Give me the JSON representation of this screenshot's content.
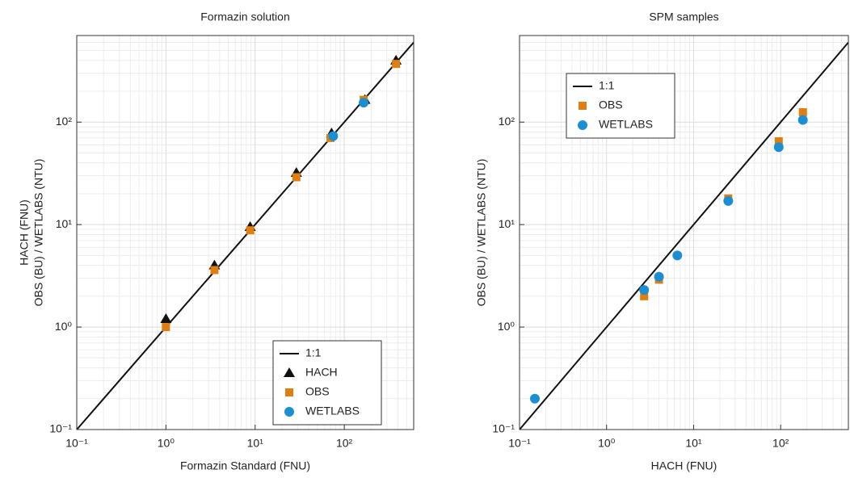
{
  "chart_data": [
    {
      "type": "scatter",
      "title": "Formazin solution",
      "xlabel": "Formazin Standard (FNU)",
      "ylabel": [
        "HACH (FNU)",
        "OBS (BU) / WETLABS (NTU)"
      ],
      "log_x": true,
      "log_y": true,
      "grid": true,
      "minor_grid": true,
      "legend": "lower right",
      "xlim": [
        0.1,
        600
      ],
      "ylim": [
        0.1,
        700
      ],
      "xticks": [
        {
          "value": 0.1,
          "label": "10⁻¹"
        },
        {
          "value": 1,
          "label": "10⁰"
        },
        {
          "value": 10,
          "label": "10¹"
        },
        {
          "value": 100,
          "label": "10²"
        }
      ],
      "yticks": [
        {
          "value": 0.1,
          "label": "10⁻¹"
        },
        {
          "value": 1,
          "label": "10⁰"
        },
        {
          "value": 10,
          "label": "10¹"
        },
        {
          "value": 100,
          "label": "10²"
        }
      ],
      "series": [
        {
          "name": "1:1",
          "marker": "line",
          "color": "#111111",
          "x": [
            0.1,
            600
          ],
          "values": [
            0.1,
            600
          ]
        },
        {
          "name": "HACH",
          "marker": "triangle",
          "color": "#111111",
          "x": [
            1,
            3.5,
            8.8,
            29,
            72,
            170,
            380
          ],
          "values": [
            1.2,
            4,
            9.5,
            32,
            78,
            165,
            400
          ]
        },
        {
          "name": "OBS",
          "marker": "square",
          "color": "#e07f10",
          "x": [
            1,
            3.5,
            8.8,
            29,
            70,
            165,
            380
          ],
          "values": [
            1.0,
            3.6,
            8.8,
            29,
            70,
            165,
            370
          ]
        },
        {
          "name": "WETLABS",
          "marker": "circle",
          "color": "#1b8fd2",
          "x": [
            75,
            165
          ],
          "values": [
            73,
            155
          ]
        }
      ]
    },
    {
      "type": "scatter",
      "title": "SPM samples",
      "xlabel": "HACH (FNU)",
      "ylabel": [
        "OBS (BU) / WETLABS (NTU)"
      ],
      "log_x": true,
      "log_y": true,
      "grid": true,
      "minor_grid": true,
      "legend": "upper left",
      "xlim": [
        0.1,
        600
      ],
      "ylim": [
        0.1,
        700
      ],
      "xticks": [
        {
          "value": 0.1,
          "label": "10⁻¹"
        },
        {
          "value": 1,
          "label": "10⁰"
        },
        {
          "value": 10,
          "label": "10¹"
        },
        {
          "value": 100,
          "label": "10²"
        }
      ],
      "yticks": [
        {
          "value": 0.1,
          "label": "10⁻¹"
        },
        {
          "value": 1,
          "label": "10⁰"
        },
        {
          "value": 10,
          "label": "10¹"
        },
        {
          "value": 100,
          "label": "10²"
        }
      ],
      "series": [
        {
          "name": "1:1",
          "marker": "line",
          "color": "#111111",
          "x": [
            0.1,
            600
          ],
          "values": [
            0.1,
            600
          ]
        },
        {
          "name": "OBS",
          "marker": "square",
          "color": "#e07f10",
          "x": [
            2.7,
            4,
            25,
            95,
            180
          ],
          "values": [
            2.0,
            2.9,
            18,
            65,
            125
          ]
        },
        {
          "name": "WETLABS",
          "marker": "circle",
          "color": "#1b8fd2",
          "x": [
            0.15,
            2.7,
            4,
            6.5,
            25,
            95,
            180
          ],
          "values": [
            0.2,
            2.3,
            3.1,
            5.0,
            17,
            57,
            105
          ]
        }
      ]
    }
  ]
}
